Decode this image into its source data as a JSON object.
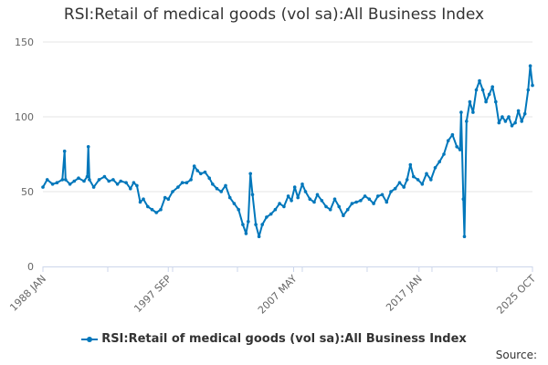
{
  "title": "RSI:Retail of medical goods (vol sa):All Business Index",
  "source_label": "Source:",
  "colors": {
    "series": "#0077bb",
    "grid": "#e6e6e6",
    "axis": "#ccd6eb",
    "text": "#666666"
  },
  "chart_data": {
    "type": "line",
    "title": "RSI:Retail of medical goods (vol sa):All Business Index",
    "xlabel": "",
    "ylabel": "",
    "ylim": [
      0,
      150
    ],
    "yticks": [
      0,
      50,
      100,
      150
    ],
    "x_start": "1988 JAN",
    "x_end": "2025 OCT",
    "xticks": [
      "1988 JAN",
      "1997 SEP",
      "2007 MAY",
      "2017 JAN",
      "2025 OCT"
    ],
    "grid": true,
    "legend_position": "bottom",
    "series": [
      {
        "name": "RSI:Retail of medical goods (vol sa):All Business Index",
        "points": [
          [
            "1988-01",
            53
          ],
          [
            "1988-05",
            58
          ],
          [
            "1988-10",
            55
          ],
          [
            "1989-02",
            56
          ],
          [
            "1989-07",
            58
          ],
          [
            "1989-09",
            77
          ],
          [
            "1989-10",
            58
          ],
          [
            "1990-02",
            55
          ],
          [
            "1990-06",
            57
          ],
          [
            "1990-10",
            59
          ],
          [
            "1991-03",
            57
          ],
          [
            "1991-06",
            60
          ],
          [
            "1991-07",
            80
          ],
          [
            "1991-08",
            58
          ],
          [
            "1991-12",
            53
          ],
          [
            "1992-05",
            58
          ],
          [
            "1992-10",
            60
          ],
          [
            "1993-02",
            57
          ],
          [
            "1993-06",
            58
          ],
          [
            "1993-10",
            55
          ],
          [
            "1994-01",
            57
          ],
          [
            "1994-06",
            56
          ],
          [
            "1994-10",
            52
          ],
          [
            "1995-01",
            56
          ],
          [
            "1995-04",
            54
          ],
          [
            "1995-07",
            43
          ],
          [
            "1995-10",
            45
          ],
          [
            "1996-02",
            40
          ],
          [
            "1996-06",
            38
          ],
          [
            "1996-10",
            36
          ],
          [
            "1997-02",
            38
          ],
          [
            "1997-06",
            46
          ],
          [
            "1997-09",
            45
          ],
          [
            "1998-01",
            50
          ],
          [
            "1998-06",
            53
          ],
          [
            "1998-10",
            56
          ],
          [
            "1999-02",
            56
          ],
          [
            "1999-06",
            58
          ],
          [
            "1999-09",
            67
          ],
          [
            "1999-12",
            64
          ],
          [
            "2000-03",
            62
          ],
          [
            "2000-07",
            63
          ],
          [
            "2000-11",
            59
          ],
          [
            "2001-02",
            55
          ],
          [
            "2001-06",
            52
          ],
          [
            "2001-10",
            50
          ],
          [
            "2002-02",
            54
          ],
          [
            "2002-06",
            46
          ],
          [
            "2002-10",
            42
          ],
          [
            "2003-02",
            38
          ],
          [
            "2003-06",
            28
          ],
          [
            "2003-09",
            22
          ],
          [
            "2003-11",
            30
          ],
          [
            "2004-01",
            62
          ],
          [
            "2004-03",
            48
          ],
          [
            "2004-06",
            28
          ],
          [
            "2004-09",
            20
          ],
          [
            "2004-12",
            28
          ],
          [
            "2005-04",
            33
          ],
          [
            "2005-08",
            35
          ],
          [
            "2005-12",
            38
          ],
          [
            "2006-04",
            42
          ],
          [
            "2006-08",
            40
          ],
          [
            "2006-12",
            47
          ],
          [
            "2007-03",
            44
          ],
          [
            "2007-06",
            53
          ],
          [
            "2007-09",
            46
          ],
          [
            "2008-01",
            55
          ],
          [
            "2008-04",
            50
          ],
          [
            "2008-08",
            45
          ],
          [
            "2008-12",
            43
          ],
          [
            "2009-03",
            48
          ],
          [
            "2009-07",
            44
          ],
          [
            "2009-11",
            40
          ],
          [
            "2010-03",
            38
          ],
          [
            "2010-07",
            45
          ],
          [
            "2010-11",
            40
          ],
          [
            "2011-03",
            34
          ],
          [
            "2011-07",
            38
          ],
          [
            "2011-11",
            42
          ],
          [
            "2012-03",
            43
          ],
          [
            "2012-07",
            44
          ],
          [
            "2012-11",
            47
          ],
          [
            "2013-03",
            45
          ],
          [
            "2013-07",
            42
          ],
          [
            "2013-11",
            47
          ],
          [
            "2014-03",
            48
          ],
          [
            "2014-07",
            43
          ],
          [
            "2014-11",
            50
          ],
          [
            "2015-03",
            52
          ],
          [
            "2015-07",
            56
          ],
          [
            "2015-11",
            53
          ],
          [
            "2016-02",
            58
          ],
          [
            "2016-05",
            68
          ],
          [
            "2016-08",
            60
          ],
          [
            "2016-12",
            58
          ],
          [
            "2017-04",
            55
          ],
          [
            "2017-08",
            62
          ],
          [
            "2017-12",
            58
          ],
          [
            "2018-04",
            66
          ],
          [
            "2018-08",
            70
          ],
          [
            "2018-12",
            75
          ],
          [
            "2019-04",
            84
          ],
          [
            "2019-08",
            88
          ],
          [
            "2019-12",
            80
          ],
          [
            "2020-03",
            78
          ],
          [
            "2020-04",
            103
          ],
          [
            "2020-06",
            45
          ],
          [
            "2020-07",
            20
          ],
          [
            "2020-09",
            97
          ],
          [
            "2020-12",
            110
          ],
          [
            "2021-03",
            103
          ],
          [
            "2021-06",
            118
          ],
          [
            "2021-09",
            124
          ],
          [
            "2021-12",
            118
          ],
          [
            "2022-03",
            110
          ],
          [
            "2022-06",
            115
          ],
          [
            "2022-09",
            120
          ],
          [
            "2022-12",
            110
          ],
          [
            "2023-03",
            96
          ],
          [
            "2023-06",
            100
          ],
          [
            "2023-09",
            97
          ],
          [
            "2023-12",
            100
          ],
          [
            "2024-03",
            94
          ],
          [
            "2024-06",
            96
          ],
          [
            "2024-09",
            104
          ],
          [
            "2024-12",
            97
          ],
          [
            "2025-03",
            102
          ],
          [
            "2025-06",
            118
          ],
          [
            "2025-08",
            134
          ],
          [
            "2025-10",
            121
          ]
        ]
      }
    ]
  }
}
